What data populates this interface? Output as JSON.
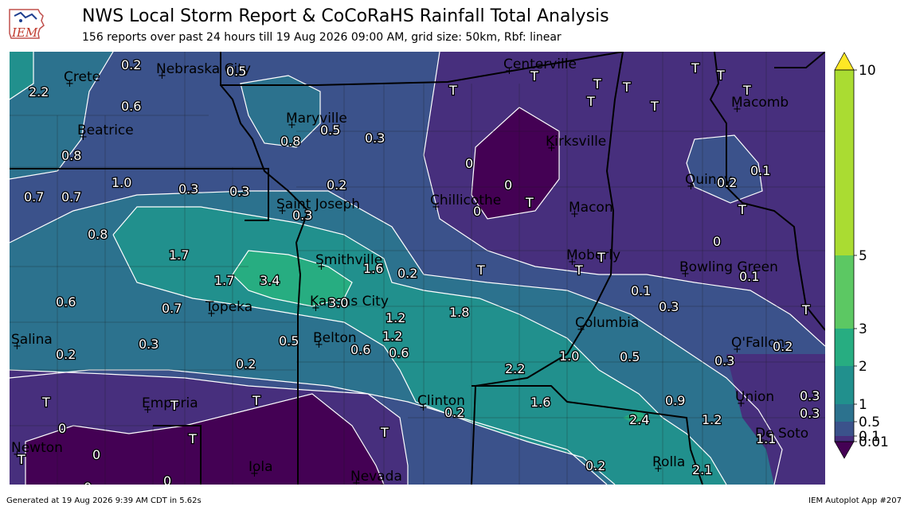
{
  "header": {
    "title": "NWS Local Storm Report & CoCoRaHS Rainfall Total Analysis",
    "subtitle": "156 reports over past 24 hours till 19 Aug 2026 09:00 AM, grid size: 50km, Rbf: linear",
    "logo_text": "IEM"
  },
  "colors": {
    "lv0": "#440154",
    "lv1": "#472f7d",
    "lv2": "#3b528b",
    "lv3": "#2c728e",
    "lv4": "#21908d",
    "lv5": "#27ad81",
    "lv6": "#5cc863",
    "lv7": "#aadc32",
    "lv8": "#fde725",
    "contour": "#ffffff",
    "border": "#000000"
  },
  "legend": {
    "ticks": [
      "10",
      "5",
      "3",
      "2",
      "1",
      "0.5",
      "0.1",
      "0.01"
    ]
  },
  "cities": [
    {
      "name": "Crete"
    },
    {
      "name": "Nebraska City"
    },
    {
      "name": "Centerville"
    },
    {
      "name": "Beatrice"
    },
    {
      "name": "Maryville"
    },
    {
      "name": "Kirksville"
    },
    {
      "name": "Macomb"
    },
    {
      "name": "Quincy"
    },
    {
      "name": "Saint Joseph"
    },
    {
      "name": "Chillicothe"
    },
    {
      "name": "Macon"
    },
    {
      "name": "Smithville"
    },
    {
      "name": "Moberly"
    },
    {
      "name": "Bowling Green"
    },
    {
      "name": "Topeka"
    },
    {
      "name": "Kansas City"
    },
    {
      "name": "Columbia"
    },
    {
      "name": "Salina"
    },
    {
      "name": "Belton"
    },
    {
      "name": "O'Fallon"
    },
    {
      "name": "Emporia"
    },
    {
      "name": "Clinton"
    },
    {
      "name": "Union"
    },
    {
      "name": "Newton"
    },
    {
      "name": "Iola"
    },
    {
      "name": "Nevada"
    },
    {
      "name": "Rolla"
    },
    {
      "name": "De Soto"
    }
  ],
  "obs": [
    {
      "text": "0.2"
    },
    {
      "text": "0.5"
    },
    {
      "text": "T"
    },
    {
      "text": "T"
    },
    {
      "text": "T"
    },
    {
      "text": "T"
    },
    {
      "text": "T"
    },
    {
      "text": "T"
    },
    {
      "text": "2.2"
    },
    {
      "text": "0.6"
    },
    {
      "text": "T"
    },
    {
      "text": "T"
    },
    {
      "text": "T"
    },
    {
      "text": "0.8"
    },
    {
      "text": "0.5"
    },
    {
      "text": "0.3"
    },
    {
      "text": "0"
    },
    {
      "text": "0.8"
    },
    {
      "text": "1.0"
    },
    {
      "text": "0.3"
    },
    {
      "text": "0.3"
    },
    {
      "text": "0.2"
    },
    {
      "text": "0"
    },
    {
      "text": "0.2"
    },
    {
      "text": "0.1"
    },
    {
      "text": "0.7"
    },
    {
      "text": "0.7"
    },
    {
      "text": "0.3"
    },
    {
      "text": "T"
    },
    {
      "text": "0"
    },
    {
      "text": "T"
    },
    {
      "text": "0.8"
    },
    {
      "text": "0"
    },
    {
      "text": "1.7"
    },
    {
      "text": "1.6"
    },
    {
      "text": "0.2"
    },
    {
      "text": "T"
    },
    {
      "text": "T"
    },
    {
      "text": "T"
    },
    {
      "text": "0.1"
    },
    {
      "text": "1.7"
    },
    {
      "text": "3.4"
    },
    {
      "text": "0.1"
    },
    {
      "text": "0.6"
    },
    {
      "text": "3.0"
    },
    {
      "text": "1.8"
    },
    {
      "text": "0.3"
    },
    {
      "text": "0.7"
    },
    {
      "text": "1.2"
    },
    {
      "text": "T"
    },
    {
      "text": "0.3"
    },
    {
      "text": "0.5"
    },
    {
      "text": "1.2"
    },
    {
      "text": "0.2"
    },
    {
      "text": "0.6"
    },
    {
      "text": "0.6"
    },
    {
      "text": "1.0"
    },
    {
      "text": "0.5"
    },
    {
      "text": "0.3"
    },
    {
      "text": "0.2"
    },
    {
      "text": "0.2"
    },
    {
      "text": "2.2"
    },
    {
      "text": "T"
    },
    {
      "text": "T"
    },
    {
      "text": "T"
    },
    {
      "text": "1.6"
    },
    {
      "text": "0.9"
    },
    {
      "text": "0.3"
    },
    {
      "text": "0.2"
    },
    {
      "text": "1.2"
    },
    {
      "text": "0.3"
    },
    {
      "text": "0"
    },
    {
      "text": "T"
    },
    {
      "text": "T"
    },
    {
      "text": "2.4"
    },
    {
      "text": "1.1"
    },
    {
      "text": "T"
    },
    {
      "text": "0"
    },
    {
      "text": "0.2"
    },
    {
      "text": "2.1"
    },
    {
      "text": "0"
    },
    {
      "text": "0"
    },
    {
      "text": "0"
    }
  ],
  "footer": {
    "left": "Generated at 19 Aug 2026 9:39 AM CDT in 5.62s",
    "right": "IEM Autoplot App #207"
  }
}
